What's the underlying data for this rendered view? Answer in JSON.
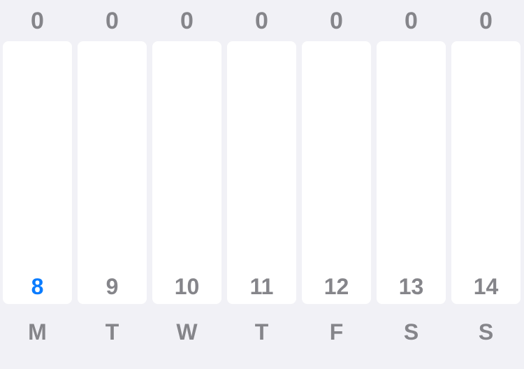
{
  "colors": {
    "background": "#f1f1f6",
    "bar": "#ffffff",
    "text": "#85858a",
    "accent_today": "#0a7cff"
  },
  "week": [
    {
      "count": "0",
      "date": "8",
      "weekday": "M",
      "today": true
    },
    {
      "count": "0",
      "date": "9",
      "weekday": "T",
      "today": false
    },
    {
      "count": "0",
      "date": "10",
      "weekday": "W",
      "today": false
    },
    {
      "count": "0",
      "date": "11",
      "weekday": "T",
      "today": false
    },
    {
      "count": "0",
      "date": "12",
      "weekday": "F",
      "today": false
    },
    {
      "count": "0",
      "date": "13",
      "weekday": "S",
      "today": false
    },
    {
      "count": "0",
      "date": "14",
      "weekday": "S",
      "today": false
    }
  ]
}
